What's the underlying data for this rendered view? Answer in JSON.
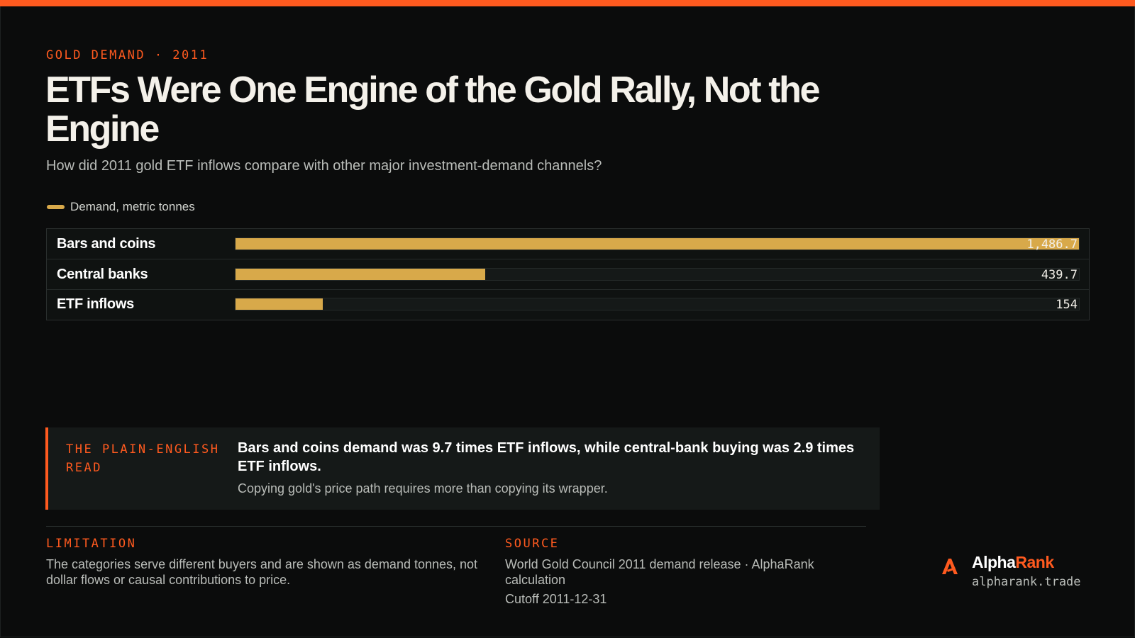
{
  "header": {
    "kicker": "GOLD DEMAND · 2011",
    "title": "ETFs Were One Engine of the Gold Rally, Not the Engine",
    "subtitle": "How did 2011 gold ETF inflows compare with other major investment-demand channels?"
  },
  "legend": {
    "label": "Demand, metric tonnes"
  },
  "colors": {
    "accent": "#ff5a1f",
    "bar": "#d8a94a",
    "background": "#0b0c0c"
  },
  "chart_data": {
    "type": "bar",
    "orientation": "horizontal",
    "categories": [
      "Bars and coins",
      "Central banks",
      "ETF inflows"
    ],
    "series": [
      {
        "name": "Demand, metric tonnes",
        "values": [
          1486.7,
          439.7,
          154
        ]
      }
    ],
    "value_labels": [
      "1,486.7",
      "439.7",
      "154"
    ],
    "xlim": [
      0,
      1486.7
    ],
    "grid": false,
    "legend": "top-left"
  },
  "callout": {
    "label": "THE PLAIN-ENGLISH READ",
    "headline": "Bars and coins demand was 9.7 times ETF inflows, while central-bank buying was 2.9 times ETF inflows.",
    "body": "Copying gold's price path requires more than copying its wrapper."
  },
  "footer": {
    "limitation_label": "LIMITATION",
    "limitation_text": "The categories serve different buyers and are shown as demand tonnes, not dollar flows or causal contributions to price.",
    "source_label": "SOURCE",
    "source_text": "World Gold Council 2011 demand release · AlphaRank calculation",
    "cutoff": "Cutoff 2011-12-31"
  },
  "brand": {
    "name_part1": "Alpha",
    "name_part2": "Rank",
    "url": "alpharank.trade",
    "icon": "alpharank-logo-icon"
  }
}
